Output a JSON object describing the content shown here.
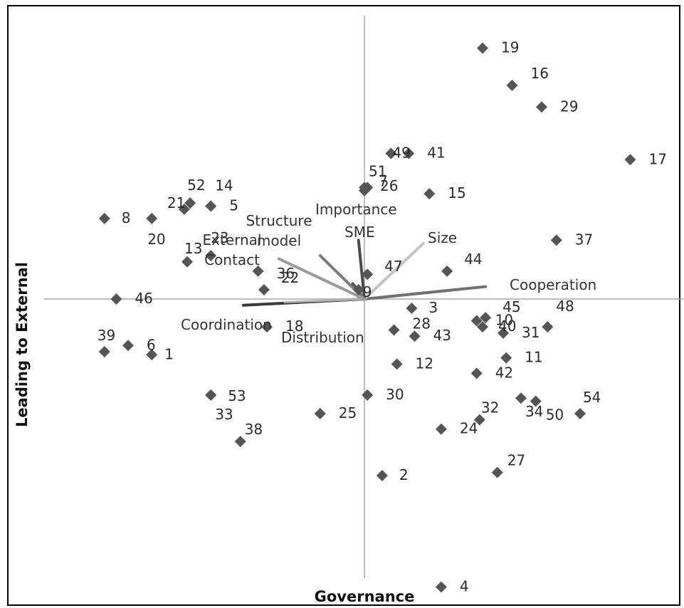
{
  "chart_data": {
    "type": "scatter",
    "title": "",
    "xlabel": "Governance",
    "ylabel": "Leading to External",
    "xlim": [
      -1.0,
      1.0
    ],
    "ylim": [
      -1.0,
      1.0
    ],
    "grid": false,
    "legend": "none",
    "marker_color": "#555555",
    "points": [
      {
        "label": "1",
        "x": -0.72,
        "y": -0.18
      },
      {
        "label": "2",
        "x": 0.06,
        "y": -0.57
      },
      {
        "label": "3",
        "x": 0.16,
        "y": -0.03
      },
      {
        "label": "4",
        "x": 0.26,
        "y": -0.93
      },
      {
        "label": "5",
        "x": -0.52,
        "y": 0.3
      },
      {
        "label": "6",
        "x": -0.8,
        "y": -0.15
      },
      {
        "label": "7",
        "x": 0.01,
        "y": 0.36
      },
      {
        "label": "8",
        "x": -0.88,
        "y": 0.26
      },
      {
        "label": "9",
        "x": -0.02,
        "y": 0.03
      },
      {
        "label": "10",
        "x": 0.38,
        "y": -0.07
      },
      {
        "label": "11",
        "x": 0.48,
        "y": -0.19
      },
      {
        "label": "12",
        "x": 0.11,
        "y": -0.21
      },
      {
        "label": "13",
        "x": -0.6,
        "y": 0.12
      },
      {
        "label": "14",
        "x": -0.52,
        "y": 0.3
      },
      {
        "label": "15",
        "x": 0.22,
        "y": 0.34
      },
      {
        "label": "16",
        "x": 0.5,
        "y": 0.69
      },
      {
        "label": "17",
        "x": 0.9,
        "y": 0.45
      },
      {
        "label": "18",
        "x": -0.33,
        "y": -0.09
      },
      {
        "label": "19",
        "x": 0.4,
        "y": 0.81
      },
      {
        "label": "20",
        "x": -0.72,
        "y": 0.26
      },
      {
        "label": "21",
        "x": -0.61,
        "y": 0.29
      },
      {
        "label": "22",
        "x": -0.34,
        "y": 0.03
      },
      {
        "label": "23",
        "x": -0.52,
        "y": 0.14
      },
      {
        "label": "24",
        "x": 0.26,
        "y": -0.42
      },
      {
        "label": "25",
        "x": -0.15,
        "y": -0.37
      },
      {
        "label": "26",
        "x": 0.0,
        "y": 0.35
      },
      {
        "label": "27",
        "x": 0.45,
        "y": -0.56
      },
      {
        "label": "28",
        "x": 0.1,
        "y": -0.1
      },
      {
        "label": "29",
        "x": 0.6,
        "y": 0.62
      },
      {
        "label": "30",
        "x": 0.01,
        "y": -0.31
      },
      {
        "label": "31",
        "x": 0.47,
        "y": -0.11
      },
      {
        "label": "32",
        "x": 0.39,
        "y": -0.39
      },
      {
        "label": "33",
        "x": -0.52,
        "y": -0.31
      },
      {
        "label": "34",
        "x": 0.53,
        "y": -0.32
      },
      {
        "label": "36",
        "x": -0.36,
        "y": 0.09
      },
      {
        "label": "37",
        "x": 0.65,
        "y": 0.19
      },
      {
        "label": "38",
        "x": -0.42,
        "y": -0.46
      },
      {
        "label": "39",
        "x": -0.88,
        "y": -0.17
      },
      {
        "label": "40",
        "x": 0.4,
        "y": -0.09
      },
      {
        "label": "41",
        "x": 0.15,
        "y": 0.47
      },
      {
        "label": "42",
        "x": 0.38,
        "y": -0.24
      },
      {
        "label": "43",
        "x": 0.17,
        "y": -0.12
      },
      {
        "label": "44",
        "x": 0.28,
        "y": 0.09
      },
      {
        "label": "45",
        "x": 0.41,
        "y": -0.06
      },
      {
        "label": "46",
        "x": -0.84,
        "y": 0.0
      },
      {
        "label": "47",
        "x": 0.01,
        "y": 0.08
      },
      {
        "label": "48",
        "x": 0.62,
        "y": -0.09
      },
      {
        "label": "49",
        "x": 0.09,
        "y": 0.47
      },
      {
        "label": "50",
        "x": 0.58,
        "y": -0.33
      },
      {
        "label": "51",
        "x": 0.0,
        "y": 0.36
      },
      {
        "label": "52",
        "x": -0.59,
        "y": 0.31
      },
      {
        "label": "53",
        "x": -0.52,
        "y": -0.31
      },
      {
        "label": "54",
        "x": 0.73,
        "y": -0.37
      }
    ],
    "vectors": [
      {
        "label": "Cooperation",
        "x": 0.41,
        "y": 0.04,
        "color": "#707070",
        "width": 4
      },
      {
        "label": "Coordination",
        "x": -0.41,
        "y": -0.02,
        "color": "#3a3a3a",
        "width": 4
      },
      {
        "label": "Distribution",
        "x": -0.27,
        "y": -0.01,
        "color": "#b5b5b5",
        "width": 3
      },
      {
        "label": "Size",
        "x": 0.2,
        "y": 0.18,
        "color": "#c4c4c4",
        "width": 4
      },
      {
        "label": "SME",
        "x": -0.02,
        "y": 0.19,
        "color": "#4c4c4c",
        "width": 4
      },
      {
        "label": "Importance",
        "x": -0.04,
        "y": 0.05,
        "color": "#555555",
        "width": 4
      },
      {
        "label": "Structure model",
        "x": -0.15,
        "y": 0.14,
        "color": "#7c7c7c",
        "width": 4
      },
      {
        "label": "External Contact",
        "x": -0.29,
        "y": 0.13,
        "color": "#9a9a9a",
        "width": 4
      }
    ]
  },
  "vector_label_lines": {
    "Cooperation": [
      "Cooperation"
    ],
    "Coordination": [
      "Coordination"
    ],
    "Distribution": [
      "Distribution"
    ],
    "Size": [
      "Size"
    ],
    "SME": [
      "SME"
    ],
    "Importance": [
      "Importance"
    ],
    "Structure model": [
      "Structure",
      "model"
    ],
    "External Contact": [
      "External",
      "Contact"
    ]
  }
}
